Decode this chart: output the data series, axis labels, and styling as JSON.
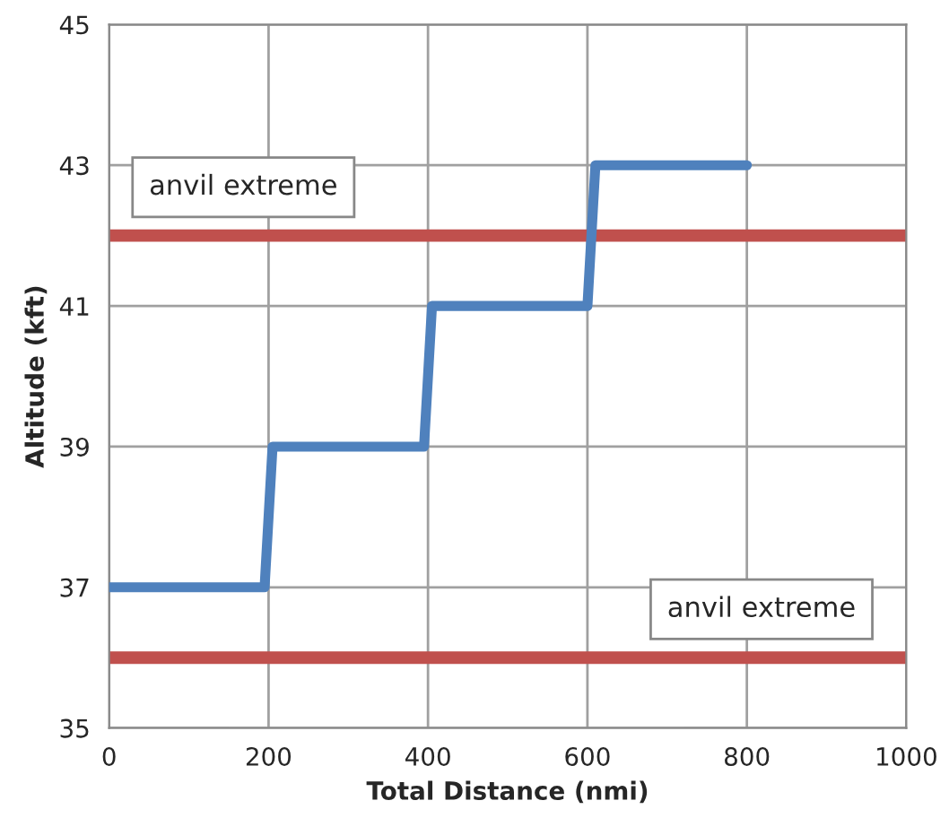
{
  "chart_data": {
    "type": "line",
    "xlabel": "Total Distance (nmi)",
    "ylabel": "Altitude (kft)",
    "x": [
      0,
      195,
      205,
      395,
      405,
      600,
      610,
      800
    ],
    "series": [
      {
        "color": "#4f81bd",
        "values": [
          37,
          37,
          39,
          39,
          41,
          41,
          43,
          43
        ]
      }
    ],
    "xlim": [
      0,
      1000
    ],
    "xticks": [
      0,
      200,
      400,
      600,
      800,
      1000
    ],
    "ylim": [
      35,
      45
    ],
    "yticks": [
      35,
      37,
      39,
      41,
      43,
      45
    ],
    "grid": true,
    "legend": false,
    "marker": "none",
    "line_style": "solid",
    "ref_lines": [
      {
        "axis": "y",
        "value": 42,
        "label": "anvil extreme",
        "color": "#c0504d"
      },
      {
        "axis": "y",
        "value": 36,
        "label": "anvil extreme",
        "color": "#c0504d"
      }
    ]
  }
}
